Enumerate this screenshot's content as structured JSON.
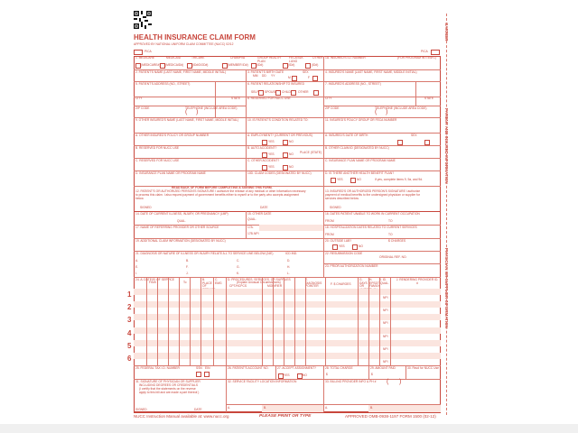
{
  "header": {
    "title": "HEALTH INSURANCE CLAIM FORM",
    "approved": "APPROVED BY NATIONAL UNIFORM CLAIM COMMITTEE (NUCC) 02/12",
    "pica": "PICA",
    "qr_icon": "qr-code-icon"
  },
  "side_labels": {
    "carrier": "CARRIER",
    "patient": "PATIENT AND INSURED INFORMATION",
    "physician": "PHYSICIAN OR SUPPLIER INFORMATION"
  },
  "item1": {
    "label": "1. MEDICARE",
    "options": [
      {
        "top": "",
        "sub": "(Medicare#)"
      },
      {
        "top": "MEDICAID",
        "sub": "(Medicaid#)"
      },
      {
        "top": "TRICARE",
        "sub": "(ID#/DoD#)"
      },
      {
        "top": "CHAMPVA",
        "sub": "(Member ID#)"
      },
      {
        "top": "GROUP HEALTH PLAN",
        "sub": "(ID#)"
      },
      {
        "top": "FECA BLK LUNG",
        "sub": "(ID#)"
      },
      {
        "top": "OTHER",
        "sub": "(ID#)"
      }
    ]
  },
  "fields": {
    "f1a": "1a. INSURED'S I.D. NUMBER",
    "f1a_note": "(For Program in Item 1)",
    "f2": "2. PATIENT'S NAME (Last Name, First Name, Middle Initial)",
    "f3": "3. PATIENT'S BIRTH DATE",
    "f3_sex": "SEX",
    "mm": "MM",
    "dd": "DD",
    "yy": "YY",
    "m": "M",
    "f": "F",
    "f4": "4. INSURED'S NAME (Last Name, First Name, Middle Initial)",
    "f5": "5. PATIENT'S ADDRESS (No., Street)",
    "f6": "6. PATIENT RELATIONSHIP TO INSURED",
    "rel": [
      "Self",
      "Spouse",
      "Child",
      "Other"
    ],
    "f7": "7. INSURED'S ADDRESS (No., Street)",
    "city": "CITY",
    "state": "STATE",
    "f8": "8. RESERVED FOR NUCC USE",
    "zip": "ZIP CODE",
    "tel": "TELEPHONE (Include Area Code)",
    "f9": "9. OTHER INSURED'S NAME (Last Name, First Name, Middle Initial)",
    "f10": "10. IS PATIENT'S CONDITION RELATED TO:",
    "f11": "11. INSURED'S POLICY GROUP OR FECA NUMBER",
    "f9a": "a. OTHER INSURED'S POLICY OR GROUP NUMBER",
    "f10a": "a. EMPLOYMENT? (Current or Previous)",
    "f11a": "a. INSURED'S DATE OF BIRTH",
    "f9b": "b. RESERVED FOR NUCC USE",
    "f10b": "b. AUTO ACCIDENT?",
    "place": "PLACE (State)",
    "f11b": "b. OTHER CLAIM ID (Designated by NUCC)",
    "f9c": "c. RESERVED FOR NUCC USE",
    "f10c": "c. OTHER ACCIDENT?",
    "f11c": "c. INSURANCE PLAN NAME OR PROGRAM NAME",
    "f9d": "d. INSURANCE PLAN NAME OR PROGRAM NAME",
    "f10d": "10d. CLAIM CODES (Designated by NUCC)",
    "f11d": "d. IS THERE ANOTHER HEALTH BENEFIT PLAN?",
    "f11d_note": "If yes, complete items 9, 9a, and 9d.",
    "yes": "YES",
    "no": "NO",
    "read_back": "READ BACK OF FORM BEFORE COMPLETING & SIGNING THIS FORM.",
    "f12": "12. PATIENT'S OR AUTHORIZED PERSON'S SIGNATURE I authorize the release of any medical or other information necessary",
    "f12b": "to process this claim. I also request payment of government benefits either to myself or to the party who accepts assignment",
    "f12c": "below.",
    "f13": "13. INSURED'S OR AUTHORIZED PERSON'S SIGNATURE I authorize",
    "f13b": "payment of medical benefits to the undersigned physician or supplier for",
    "f13c": "services described below.",
    "signed": "SIGNED",
    "date": "DATE",
    "f14": "14. DATE OF CURRENT ILLNESS, INJURY, or PREGNANCY (LMP)",
    "qual": "QUAL.",
    "f15": "15. OTHER DATE",
    "f16": "16. DATES PATIENT UNABLE TO WORK IN CURRENT OCCUPATION",
    "from": "FROM",
    "to": "TO",
    "f17": "17. NAME OF REFERRING PROVIDER OR OTHER SOURCE",
    "f17a": "17a.",
    "f17b": "17b.",
    "npi": "NPI",
    "f18": "18. HOSPITALIZATION DATES RELATED TO CURRENT SERVICES",
    "f19": "19. ADDITIONAL CLAIM INFORMATION (Designated by NUCC)",
    "f20": "20. OUTSIDE LAB?",
    "charges": "$ CHARGES",
    "f21": "21. DIAGNOSIS OR NATURE OF ILLNESS OR INJURY Relate A-L to service line below (24E)",
    "icd": "ICD Ind.",
    "diag": [
      "A.",
      "B.",
      "C.",
      "D.",
      "E.",
      "F.",
      "G.",
      "H.",
      "I.",
      "J.",
      "K.",
      "L."
    ],
    "f22": "22. RESUBMISSION CODE",
    "f22b": "ORIGINAL REF. NO.",
    "f23": "23. PRIOR AUTHORIZATION NUMBER",
    "f24a": "24. A. DATE(S) OF SERVICE",
    "f24_from": "From",
    "f24_to": "To",
    "f24b": "B. PLACE OF SERVICE",
    "f24c": "C. EMG",
    "f24d": "D. PROCEDURES, SERVICES, OR SUPPLIES",
    "f24d_sub": "(Explain Unusual Circumstances)",
    "cpt": "CPT/HCPCS",
    "modifier": "MODIFIER",
    "f24e": "E. DIAGNOSIS POINTER",
    "f24f": "F. $ CHARGES",
    "f24g": "G. DAYS OR UNITS",
    "f24h": "H. EPSDT Family Plan",
    "f24i": "I. ID. QUAL.",
    "f24j": "J. RENDERING PROVIDER ID. #",
    "line_numbers": [
      "1",
      "2",
      "3",
      "4",
      "5",
      "6"
    ],
    "f25": "25. FEDERAL TAX I.D. NUMBER",
    "ssn": "SSN",
    "ein": "EIN",
    "f26": "26. PATIENT'S ACCOUNT NO.",
    "f27": "27. ACCEPT ASSIGNMENT?",
    "f28": "28. TOTAL CHARGE",
    "f29": "29. AMOUNT PAID",
    "f30": "30. Rsvd for NUCC Use",
    "dollar": "$",
    "f31": "31. SIGNATURE OF PHYSICIAN OR SUPPLIER",
    "f31b": "INCLUDING DEGREES OR CREDENTIALS",
    "f31c": "(I certify that the statements on the reverse",
    "f31d": "apply to this bill and are made a part thereof.)",
    "f32": "32. SERVICE FACILITY LOCATION INFORMATION",
    "f33": "33. BILLING PROVIDER INFO & PH #",
    "a": "a.",
    "b": "b."
  },
  "footer": {
    "left": "NUCC Instruction Manual available at: www.nucc.org",
    "center": "PLEASE PRINT OR TYPE",
    "right": "APPROVED OMB-0938-1197 FORM 1500 (02-12)"
  },
  "colors": {
    "form_red": "#c8463c",
    "line_shade": "#fbe5df"
  }
}
